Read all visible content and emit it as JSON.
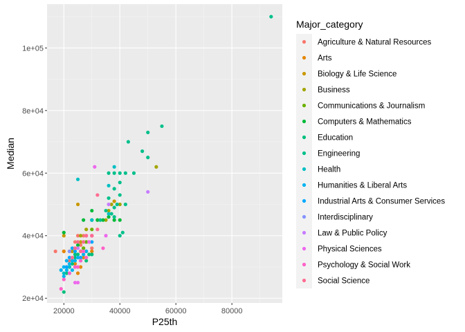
{
  "chart_data": {
    "type": "scatter",
    "xlabel": "P25th",
    "ylabel": "Median",
    "xlim": [
      14000,
      98000
    ],
    "ylim": [
      18500,
      114000
    ],
    "x_ticks": [
      20000,
      40000,
      60000,
      80000
    ],
    "x_tick_labels": [
      "20000",
      "40000",
      "60000",
      "80000"
    ],
    "y_ticks": [
      20000,
      40000,
      60000,
      80000,
      100000
    ],
    "y_tick_labels": [
      "2e+04",
      "4e+04",
      "6e+04",
      "8e+04",
      "1e+05"
    ],
    "grid": true,
    "legend_title": "Major_category",
    "legend_position": "right",
    "series": [
      {
        "name": "Agriculture & Natural Resources",
        "color": "#F8766D",
        "points": [
          [
            20000,
            35000
          ],
          [
            23000,
            35000
          ],
          [
            25000,
            40000
          ],
          [
            27000,
            40000
          ],
          [
            28000,
            40000
          ],
          [
            24000,
            38000
          ],
          [
            22000,
            32000
          ],
          [
            30000,
            36000
          ],
          [
            17000,
            35000
          ],
          [
            26000,
            37000
          ]
        ]
      },
      {
        "name": "Arts",
        "color": "#E58700",
        "points": [
          [
            20000,
            35000
          ],
          [
            22000,
            30000
          ],
          [
            24000,
            31000
          ],
          [
            25000,
            28000
          ],
          [
            26000,
            30000
          ],
          [
            28000,
            33000
          ],
          [
            23000,
            32000
          ],
          [
            30000,
            35000
          ],
          [
            27000,
            33000
          ],
          [
            21000,
            30000
          ]
        ]
      },
      {
        "name": "Biology & Life Science",
        "color": "#C99800",
        "points": [
          [
            20000,
            40000
          ],
          [
            22000,
            35000
          ],
          [
            25000,
            50000
          ],
          [
            24000,
            36000
          ],
          [
            26000,
            38000
          ],
          [
            28000,
            38000
          ],
          [
            30000,
            40000
          ],
          [
            29000,
            38000
          ],
          [
            23000,
            35000
          ],
          [
            27000,
            36000
          ],
          [
            38000,
            51000
          ]
        ]
      },
      {
        "name": "Business",
        "color": "#A3A500",
        "points": [
          [
            25000,
            38000
          ],
          [
            26000,
            40000
          ],
          [
            30000,
            40000
          ],
          [
            35000,
            45000
          ],
          [
            37000,
            50000
          ],
          [
            40000,
            50000
          ],
          [
            53000,
            62000
          ],
          [
            32000,
            45000
          ],
          [
            36000,
            48000
          ],
          [
            28000,
            42000
          ]
        ]
      },
      {
        "name": "Communications & Journalism",
        "color": "#6BB100",
        "points": [
          [
            26000,
            33000
          ],
          [
            24000,
            35000
          ],
          [
            28000,
            38000
          ],
          [
            27000,
            36000
          ],
          [
            30000,
            42000
          ]
        ]
      },
      {
        "name": "Computers & Mathematics",
        "color": "#00BA38",
        "points": [
          [
            20000,
            41000
          ],
          [
            27000,
            45000
          ],
          [
            30000,
            45000
          ],
          [
            34000,
            45000
          ],
          [
            36000,
            46000
          ],
          [
            25000,
            37000
          ],
          [
            38000,
            45000
          ],
          [
            40000,
            45000
          ],
          [
            28000,
            35000
          ],
          [
            30000,
            48000
          ],
          [
            32000,
            45000
          ]
        ]
      },
      {
        "name": "Education",
        "color": "#00BF7D",
        "points": [
          [
            20000,
            22000
          ],
          [
            22000,
            30000
          ],
          [
            24000,
            33000
          ],
          [
            26000,
            35000
          ],
          [
            28000,
            32000
          ],
          [
            25000,
            34000
          ],
          [
            27000,
            38000
          ],
          [
            30000,
            34000
          ],
          [
            21000,
            28000
          ],
          [
            23000,
            31000
          ],
          [
            29000,
            34000
          ],
          [
            24000,
            34000
          ]
        ]
      },
      {
        "name": "Engineering",
        "color": "#00C08B",
        "points": [
          [
            55000,
            75000
          ],
          [
            50000,
            73000
          ],
          [
            43000,
            70000
          ],
          [
            48000,
            67000
          ],
          [
            50000,
            65000
          ],
          [
            45000,
            60000
          ],
          [
            42000,
            60000
          ],
          [
            40000,
            60000
          ],
          [
            38000,
            60000
          ],
          [
            36000,
            60000
          ],
          [
            40000,
            57000
          ],
          [
            38000,
            55000
          ],
          [
            40000,
            53000
          ],
          [
            36000,
            52000
          ],
          [
            39000,
            50000
          ],
          [
            42000,
            50000
          ],
          [
            38000,
            49000
          ],
          [
            35000,
            48000
          ],
          [
            41000,
            41000
          ],
          [
            40000,
            40000
          ],
          [
            33000,
            45000
          ],
          [
            37000,
            47000
          ],
          [
            94000,
            110000
          ],
          [
            38000,
            46000
          ]
        ]
      },
      {
        "name": "Health",
        "color": "#00BFC4",
        "points": [
          [
            25000,
            58000
          ],
          [
            36000,
            56000
          ],
          [
            38000,
            62000
          ],
          [
            36000,
            47000
          ],
          [
            30000,
            45000
          ],
          [
            26000,
            35000
          ],
          [
            20000,
            28000
          ],
          [
            22000,
            30000
          ]
        ]
      },
      {
        "name": "Humanities & Liberal Arts",
        "color": "#00B4F0",
        "points": [
          [
            20000,
            30000
          ],
          [
            21000,
            29000
          ],
          [
            22000,
            31000
          ],
          [
            23000,
            32000
          ],
          [
            24000,
            30000
          ],
          [
            25000,
            33000
          ],
          [
            26000,
            32000
          ],
          [
            20000,
            27000
          ],
          [
            22000,
            28000
          ],
          [
            28000,
            35000
          ],
          [
            24000,
            32000
          ],
          [
            21000,
            32000
          ],
          [
            19000,
            29000
          ],
          [
            23000,
            29000
          ],
          [
            27000,
            34000
          ]
        ]
      },
      {
        "name": "Industrial Arts & Consumer Services",
        "color": "#00A9FF",
        "points": [
          [
            22000,
            33000
          ],
          [
            24000,
            35000
          ],
          [
            27000,
            35000
          ],
          [
            26000,
            33000
          ],
          [
            30000,
            38000
          ],
          [
            23000,
            36000
          ],
          [
            21000,
            30000
          ]
        ]
      },
      {
        "name": "Interdisciplinary",
        "color": "#8494FF",
        "points": [
          [
            22000,
            35000
          ]
        ]
      },
      {
        "name": "Law & Public Policy",
        "color": "#C77CFF",
        "points": [
          [
            50000,
            54000
          ],
          [
            30000,
            40000
          ],
          [
            25000,
            36000
          ],
          [
            36000,
            50000
          ],
          [
            26000,
            35000
          ]
        ]
      },
      {
        "name": "Physical Sciences",
        "color": "#ED68ED",
        "points": [
          [
            31000,
            62000
          ],
          [
            28000,
            40000
          ],
          [
            30000,
            40000
          ],
          [
            24000,
            25000
          ],
          [
            25000,
            25000
          ],
          [
            29000,
            38000
          ],
          [
            35000,
            40000
          ]
        ]
      },
      {
        "name": "Psychology & Social Work",
        "color": "#FF61C9",
        "points": [
          [
            20000,
            26000
          ],
          [
            19000,
            23000
          ],
          [
            22000,
            28000
          ],
          [
            24000,
            30000
          ],
          [
            26000,
            32000
          ],
          [
            28000,
            33000
          ],
          [
            34000,
            36000
          ],
          [
            25000,
            30000
          ],
          [
            27000,
            35000
          ]
        ]
      },
      {
        "name": "Social Science",
        "color": "#FF6C91",
        "points": [
          [
            32000,
            53000
          ],
          [
            28000,
            40000
          ],
          [
            30000,
            40000
          ],
          [
            25000,
            38000
          ],
          [
            27000,
            38000
          ],
          [
            26000,
            35000
          ],
          [
            24000,
            36000
          ],
          [
            32000,
            42000
          ],
          [
            23000,
            33000
          ]
        ]
      }
    ]
  }
}
